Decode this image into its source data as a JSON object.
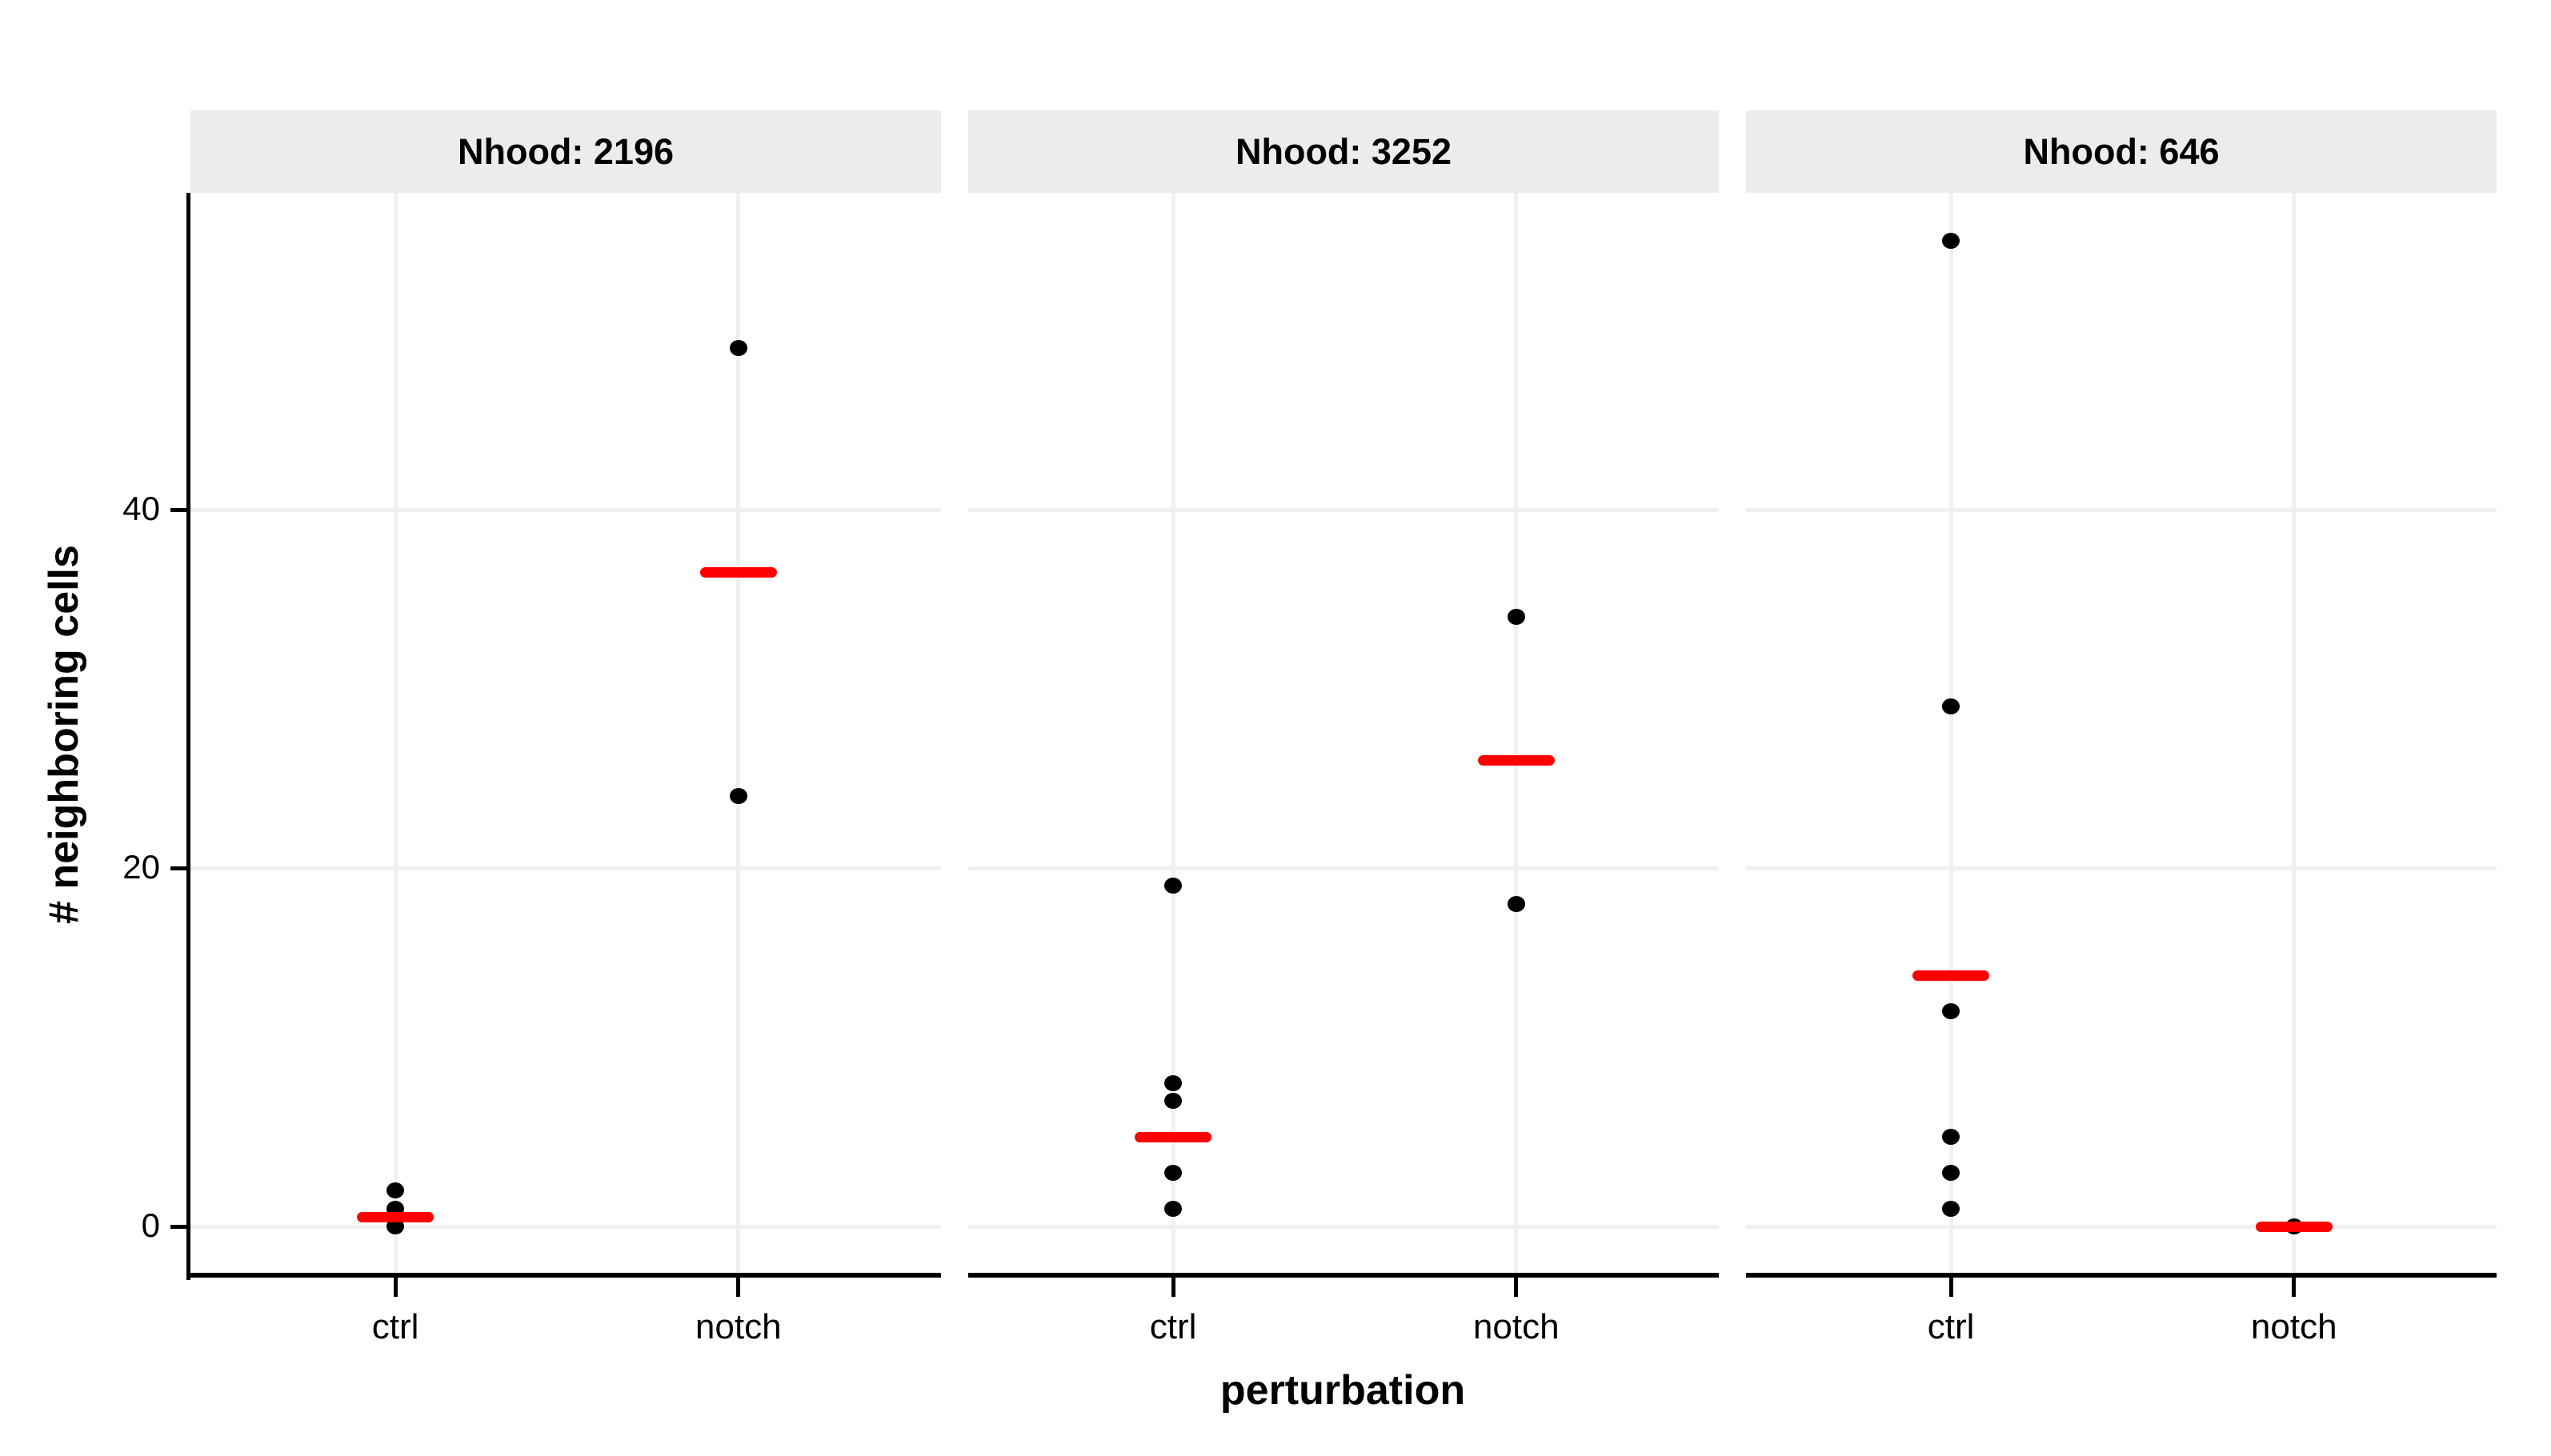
{
  "chart_data": {
    "type": "scatter",
    "subtype": "faceted-dot-plot-with-mean-crossbar",
    "xlabel": "perturbation",
    "ylabel": "# neighboring cells",
    "categories": [
      "ctrl",
      "notch"
    ],
    "y_ticks": [
      0,
      20,
      40
    ],
    "ylim": [
      -3,
      58
    ],
    "grid": "major-horizontal-and-category-vertical",
    "legend_position": "none",
    "facets": [
      {
        "label": "Nhood: 2196",
        "groups": [
          {
            "category": "ctrl",
            "points": [
              2,
              1,
              0
            ],
            "crossbar": 0.5
          },
          {
            "category": "notch",
            "points": [
              49,
              24
            ],
            "crossbar": 36.5
          }
        ]
      },
      {
        "label": "Nhood: 3252",
        "groups": [
          {
            "category": "ctrl",
            "points": [
              19,
              8,
              7,
              3,
              1
            ],
            "crossbar": 5
          },
          {
            "category": "notch",
            "points": [
              34,
              18
            ],
            "crossbar": 26
          }
        ]
      },
      {
        "label": "Nhood: 646",
        "groups": [
          {
            "category": "ctrl",
            "points": [
              55,
              29,
              12,
              5,
              3,
              1
            ],
            "crossbar": 14
          },
          {
            "category": "notch",
            "points": [
              0
            ],
            "crossbar": 0
          }
        ]
      }
    ],
    "colors": {
      "point": "#000000",
      "crossbar": "#FF0000",
      "strip_bg": "#ECECEC",
      "gridline": "#F0F0F0",
      "axis": "#000000",
      "text": "#000000",
      "panel_bg": "#FFFFFF"
    }
  }
}
